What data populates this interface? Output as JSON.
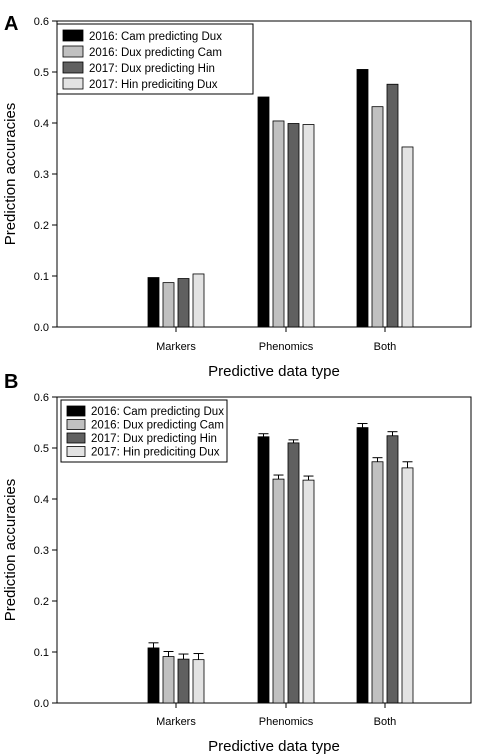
{
  "chart_data": [
    {
      "type": "bar",
      "panel_label": "A",
      "categories": [
        "Markers",
        "Phenomics",
        "Both"
      ],
      "series": [
        {
          "name": "2016: Cam predicting Dux",
          "color": "#000000",
          "values": [
            0.097,
            0.451,
            0.505
          ]
        },
        {
          "name": "2016: Dux predicting Cam",
          "color": "#c0c0c0",
          "values": [
            0.087,
            0.404,
            0.432
          ]
        },
        {
          "name": "2017: Dux predicting Hin",
          "color": "#606060",
          "values": [
            0.095,
            0.399,
            0.476
          ]
        },
        {
          "name": "2017: Hin prediciting Dux",
          "color": "#e3e3e3",
          "values": [
            0.104,
            0.397,
            0.353
          ]
        }
      ],
      "xlabel": "Predictive data type",
      "ylabel": "Prediction accuracies",
      "ylim": [
        0,
        0.6
      ],
      "yticks": [
        "0.0",
        "0.1",
        "0.2",
        "0.3",
        "0.4",
        "0.5",
        "0.6"
      ],
      "error_bars": false,
      "grid": false,
      "legend_position": "top-left"
    },
    {
      "type": "bar",
      "panel_label": "B",
      "categories": [
        "Markers",
        "Phenomics",
        "Both"
      ],
      "series": [
        {
          "name": "2016: Cam predicting Dux",
          "color": "#000000",
          "values": [
            0.108,
            0.522,
            0.54
          ],
          "errors": [
            0.01,
            0.006,
            0.008
          ]
        },
        {
          "name": "2016: Dux predicting Cam",
          "color": "#c0c0c0",
          "values": [
            0.091,
            0.439,
            0.473
          ],
          "errors": [
            0.01,
            0.008,
            0.008
          ]
        },
        {
          "name": "2017: Dux predicting Hin",
          "color": "#606060",
          "values": [
            0.086,
            0.51,
            0.524
          ],
          "errors": [
            0.01,
            0.006,
            0.008
          ]
        },
        {
          "name": "2017: Hin prediciting Dux",
          "color": "#e3e3e3",
          "values": [
            0.085,
            0.437,
            0.461
          ],
          "errors": [
            0.012,
            0.008,
            0.012
          ]
        }
      ],
      "xlabel": "Predictive data type",
      "ylabel": "Prediction accuracies",
      "ylim": [
        0,
        0.6
      ],
      "yticks": [
        "0.0",
        "0.1",
        "0.2",
        "0.3",
        "0.4",
        "0.5",
        "0.6"
      ],
      "error_bars": true,
      "grid": false,
      "legend_position": "top-left"
    }
  ]
}
